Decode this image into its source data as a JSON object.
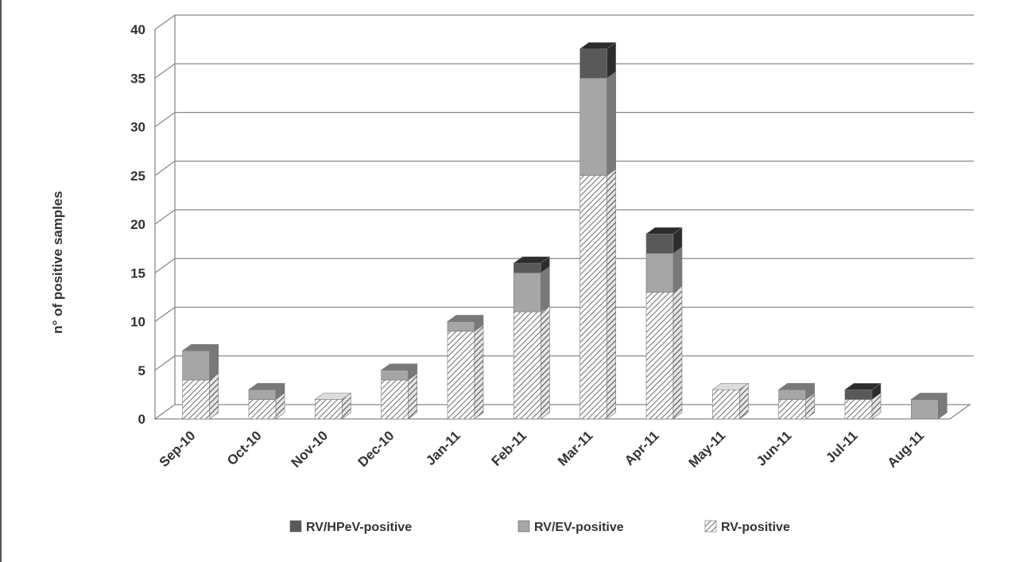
{
  "chart_data": {
    "type": "bar",
    "stacked": true,
    "three_d": true,
    "title": "",
    "xlabel": "",
    "ylabel": "n° of positive samples",
    "ylim": [
      0,
      40
    ],
    "yticks": [
      0,
      5,
      10,
      15,
      20,
      25,
      30,
      35,
      40
    ],
    "grid": true,
    "legend_position": "bottom",
    "categories": [
      "Sep-10",
      "Oct-10",
      "Nov-10",
      "Dec-10",
      "Jan-11",
      "Feb-11",
      "Mar-11",
      "Apr-11",
      "May-11",
      "Jun-11",
      "Jul-11",
      "Aug-11"
    ],
    "series": [
      {
        "name": "RV-positive",
        "values": [
          4,
          2,
          2,
          4,
          9,
          11,
          25,
          13,
          3,
          2,
          2,
          0
        ],
        "fill": "hatched",
        "color": "#ffffff"
      },
      {
        "name": "RV/EV-positive",
        "values": [
          3,
          1,
          0,
          1,
          1,
          4,
          10,
          4,
          0,
          1,
          0,
          2
        ],
        "fill": "solid",
        "color": "#a6a6a6"
      },
      {
        "name": "RV/HPeV-positive",
        "values": [
          0,
          0,
          0,
          0,
          0,
          1,
          3,
          2,
          0,
          0,
          1,
          0
        ],
        "fill": "solid",
        "color": "#595959"
      }
    ],
    "legend_order": [
      "RV/HPeV-positive",
      "RV/EV-positive",
      "RV-positive"
    ]
  }
}
